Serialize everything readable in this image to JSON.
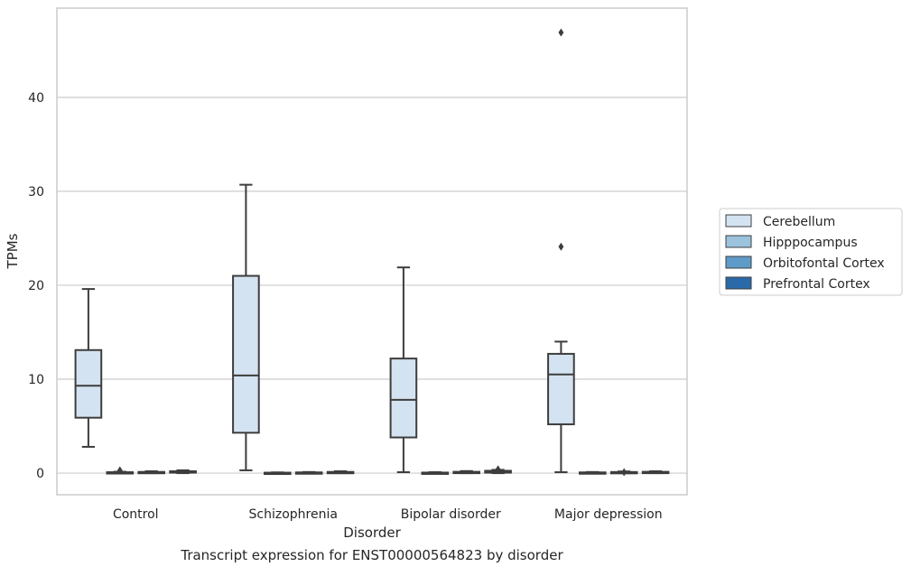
{
  "caption": "Transcript expression for ENST00000564823 by disorder",
  "chart_data": {
    "type": "box",
    "xlabel": "Disorder",
    "ylabel": "TPMs",
    "ylim": [
      -2.3,
      49.5
    ],
    "yticks": [
      0,
      10,
      20,
      30,
      40
    ],
    "grid": "y",
    "legend_position": "right, outside plot",
    "categories": [
      "Control",
      "Schizophrenia",
      "Bipolar disorder",
      "Major depression"
    ],
    "series": [
      {
        "name": "Cerebellum",
        "color": "#d4e3f1",
        "boxes": [
          {
            "min": 2.8,
            "q1": 5.9,
            "median": 9.3,
            "q3": 13.1,
            "max": 19.6,
            "outliers": []
          },
          {
            "min": 0.3,
            "q1": 4.3,
            "median": 10.4,
            "q3": 21.0,
            "max": 30.7,
            "outliers": []
          },
          {
            "min": 0.1,
            "q1": 3.8,
            "median": 7.8,
            "q3": 12.2,
            "max": 21.9,
            "outliers": []
          },
          {
            "min": 0.1,
            "q1": 5.2,
            "median": 10.5,
            "q3": 12.7,
            "max": 14.0,
            "outliers": [
              24.1,
              46.9
            ]
          }
        ]
      },
      {
        "name": "Hipppocampus",
        "color": "#9cc3de",
        "boxes": [
          {
            "min": 0.0,
            "q1": 0.02,
            "median": 0.05,
            "q3": 0.1,
            "max": 0.15,
            "outliers": [
              0.3
            ]
          },
          {
            "min": 0.0,
            "q1": 0.01,
            "median": 0.02,
            "q3": 0.05,
            "max": 0.08,
            "outliers": []
          },
          {
            "min": 0.0,
            "q1": 0.01,
            "median": 0.03,
            "q3": 0.06,
            "max": 0.1,
            "outliers": []
          },
          {
            "min": 0.0,
            "q1": 0.02,
            "median": 0.04,
            "q3": 0.08,
            "max": 0.12,
            "outliers": []
          }
        ]
      },
      {
        "name": "Orbitofontal Cortex",
        "color": "#5f9bc8",
        "boxes": [
          {
            "min": 0.0,
            "q1": 0.03,
            "median": 0.08,
            "q3": 0.13,
            "max": 0.2,
            "outliers": []
          },
          {
            "min": 0.0,
            "q1": 0.02,
            "median": 0.05,
            "q3": 0.08,
            "max": 0.12,
            "outliers": []
          },
          {
            "min": 0.0,
            "q1": 0.04,
            "median": 0.08,
            "q3": 0.14,
            "max": 0.22,
            "outliers": []
          },
          {
            "min": 0.0,
            "q1": 0.03,
            "median": 0.07,
            "q3": 0.12,
            "max": 0.18,
            "outliers": [
              0.1
            ]
          }
        ]
      },
      {
        "name": "Prefrontal Cortex",
        "color": "#2b6aa9",
        "boxes": [
          {
            "min": 0.0,
            "q1": 0.05,
            "median": 0.12,
            "q3": 0.2,
            "max": 0.3,
            "outliers": []
          },
          {
            "min": 0.0,
            "q1": 0.03,
            "median": 0.08,
            "q3": 0.13,
            "max": 0.2,
            "outliers": []
          },
          {
            "min": 0.0,
            "q1": 0.05,
            "median": 0.15,
            "q3": 0.25,
            "max": 0.35,
            "outliers": [
              0.4
            ]
          },
          {
            "min": 0.0,
            "q1": 0.03,
            "median": 0.08,
            "q3": 0.14,
            "max": 0.2,
            "outliers": []
          }
        ]
      }
    ]
  }
}
